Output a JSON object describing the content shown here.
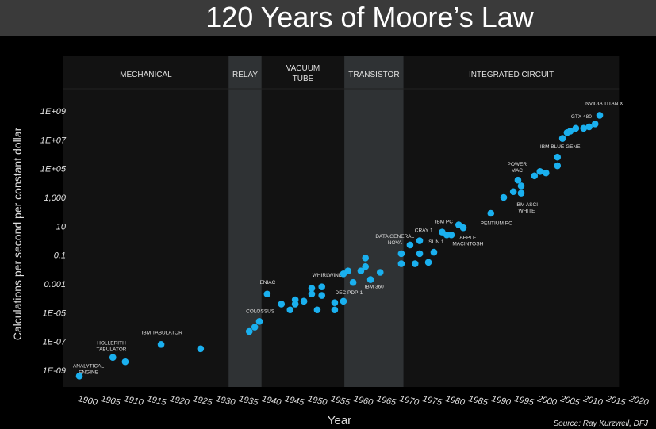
{
  "chart_data": {
    "type": "scatter",
    "title": "120 Years of Moore’s Law",
    "xlabel": "Year",
    "ylabel": "Calculations per second per constant dollar",
    "source": "Source: Ray Kurzweil, DFJ",
    "xlim": [
      1896.5,
      2017.5
    ],
    "ylim_log10": [
      -9.6,
      9.6
    ],
    "y_scale": "log",
    "x_ticks": [
      1900,
      1905,
      1910,
      1915,
      1920,
      1925,
      1930,
      1935,
      1940,
      1945,
      1950,
      1955,
      1960,
      1965,
      1970,
      1975,
      1980,
      1985,
      1990,
      1995,
      2000,
      2005,
      2010,
      2015,
      2020
    ],
    "y_ticks": [
      {
        "log": 9,
        "label": "1E+09"
      },
      {
        "log": 7,
        "label": "1E+07"
      },
      {
        "log": 5,
        "label": "1E+05"
      },
      {
        "log": 3,
        "label": "1,000"
      },
      {
        "log": 1,
        "label": "10"
      },
      {
        "log": -1,
        "label": "0.1"
      },
      {
        "log": -3,
        "label": "0.001"
      },
      {
        "log": -5,
        "label": "1E-05"
      },
      {
        "log": -7,
        "label": "1E-07"
      },
      {
        "log": -9,
        "label": "1E-09"
      }
    ],
    "eras": [
      {
        "label": "MECHANICAL",
        "start": 1896.5,
        "end": 1932.5,
        "shaded": false
      },
      {
        "label": "RELAY",
        "start": 1932.5,
        "end": 1939.7,
        "shaded": true
      },
      {
        "label": "VACUUM TUBE",
        "start": 1939.7,
        "end": 1957.7,
        "shaded": false
      },
      {
        "label": "TRANSISTOR",
        "start": 1957.7,
        "end": 1970.6,
        "shaded": true
      },
      {
        "label": "INTEGRATED CIRCUIT",
        "start": 1970.6,
        "end": 2017.5,
        "shaded": false
      }
    ],
    "points": [
      [
        1900,
        -9.4
      ],
      [
        1907.3,
        -8.1
      ],
      [
        1910,
        -8.4
      ],
      [
        1917.8,
        -7.2
      ],
      [
        1926.4,
        -7.5
      ],
      [
        1937,
        -6.3
      ],
      [
        1938.2,
        -6.0
      ],
      [
        1939.2,
        -5.6
      ],
      [
        1940.9,
        -3.7
      ],
      [
        1944,
        -4.4
      ],
      [
        1945.9,
        -4.8
      ],
      [
        1947,
        -4.4
      ],
      [
        1947,
        -4.1
      ],
      [
        1948.9,
        -4.2
      ],
      [
        1950.6,
        -3.3
      ],
      [
        1950.6,
        -3.7
      ],
      [
        1951.8,
        -4.8
      ],
      [
        1952.8,
        -3.2
      ],
      [
        1952.8,
        -3.8
      ],
      [
        1955.6,
        -4.3
      ],
      [
        1955.6,
        -4.8
      ],
      [
        1957.5,
        -4.2
      ],
      [
        1957.5,
        -2.3
      ],
      [
        1958.5,
        -2.1
      ],
      [
        1959.6,
        -2.9
      ],
      [
        1961.3,
        -2.1
      ],
      [
        1962.3,
        -1.2
      ],
      [
        1962.3,
        -1.8
      ],
      [
        1963.4,
        -2.7
      ],
      [
        1965.5,
        -2.2
      ],
      [
        1970.1,
        -0.9
      ],
      [
        1970.1,
        -1.6
      ],
      [
        1972,
        -0.3
      ],
      [
        1973.1,
        -1.6
      ],
      [
        1974.1,
        0
      ],
      [
        1974.1,
        -0.9
      ],
      [
        1976,
        -1.5
      ],
      [
        1977.2,
        -0.8
      ],
      [
        1979,
        0.6
      ],
      [
        1980,
        0.4
      ],
      [
        1981,
        0.4
      ],
      [
        1982.6,
        1.1
      ],
      [
        1983.6,
        0.9
      ],
      [
        1989.6,
        1.9
      ],
      [
        1992.4,
        3.0
      ],
      [
        1994.5,
        3.4
      ],
      [
        1995.5,
        4.2
      ],
      [
        1996.2,
        3.8
      ],
      [
        1996.2,
        3.3
      ],
      [
        1999.1,
        4.5
      ],
      [
        2000.3,
        4.8
      ],
      [
        2001.6,
        4.7
      ],
      [
        2004.1,
        5.8
      ],
      [
        2004.1,
        5.2
      ],
      [
        2005.2,
        7.1
      ],
      [
        2006.2,
        7.5
      ],
      [
        2006.9,
        7.6
      ],
      [
        2008.1,
        7.8
      ],
      [
        2009.8,
        7.8
      ],
      [
        2011,
        7.9
      ],
      [
        2012.3,
        8.1
      ],
      [
        2013.3,
        8.7
      ]
    ],
    "annotations": [
      {
        "text": [
          "ANALYTICAL",
          "ENGINE"
        ],
        "year": 1902,
        "log": -8.8
      },
      {
        "text": [
          "HOLLERITH",
          "TABULATOR"
        ],
        "year": 1907,
        "log": -7.2
      },
      {
        "text": [
          "IBM TABULATOR"
        ],
        "year": 1918,
        "log": -6.5
      },
      {
        "text": [
          "COLOSSUS"
        ],
        "year": 1939.4,
        "log": -5.0
      },
      {
        "text": [
          "ENIAC"
        ],
        "year": 1941,
        "log": -3.0
      },
      {
        "text": [
          "WHIRLWIND"
        ],
        "year": 1954,
        "log": -2.5
      },
      {
        "text": [
          "DEC PDP-1"
        ],
        "year": 1958.7,
        "log": -3.7
      },
      {
        "text": [
          "IBM 360"
        ],
        "year": 1964.2,
        "log": -3.3
      },
      {
        "text": [
          "DATA GENERAL",
          "NOVA"
        ],
        "year": 1968.7,
        "log": 0.2
      },
      {
        "text": [
          "CRAY 1"
        ],
        "year": 1975,
        "log": 0.6
      },
      {
        "text": [
          "SUN 1"
        ],
        "year": 1977.7,
        "log": -0.2
      },
      {
        "text": [
          "IBM PC"
        ],
        "year": 1979.4,
        "log": 1.2
      },
      {
        "text": [
          "APPLE",
          "MACINTOSH"
        ],
        "year": 1984.6,
        "log": 0.1
      },
      {
        "text": [
          "PENTIUM PC"
        ],
        "year": 1990.8,
        "log": 1.1
      },
      {
        "text": [
          "POWER",
          "MAC"
        ],
        "year": 1995.3,
        "log": 5.2
      },
      {
        "text": [
          "IBM ASCI",
          "WHITE"
        ],
        "year": 1997.4,
        "log": 2.4
      },
      {
        "text": [
          "IBM BLUE GENE"
        ],
        "year": 2004.7,
        "log": 6.4
      },
      {
        "text": [
          "GTX 480"
        ],
        "year": 2009.3,
        "log": 8.5
      },
      {
        "text": [
          "NVIDIA TITAN X"
        ],
        "year": 2014.3,
        "log": 9.4
      }
    ],
    "colors": {
      "point": "#1ab0ef",
      "band": "#2f3234",
      "plot_bg": "#121212",
      "title_bar": "#3a3a3a"
    }
  }
}
